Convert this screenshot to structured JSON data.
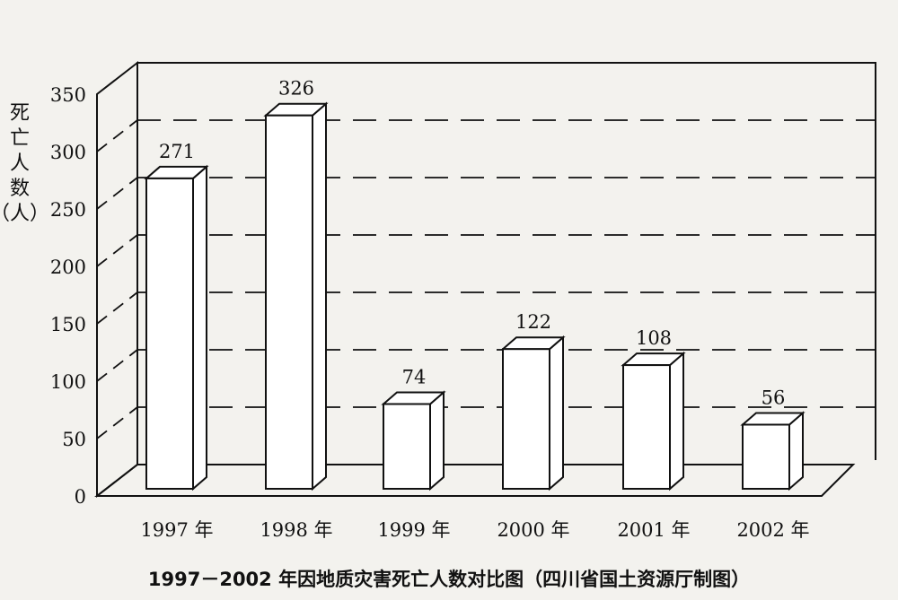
{
  "chart_data": {
    "type": "bar",
    "style": "3d",
    "title": "1997－2002 年因地质灾害死亡人数对比图（四川省国土资源厅制图）",
    "ylabel": "死亡人数（人）",
    "ylabel_chars": [
      "死",
      "亡",
      "人",
      "数",
      "（人）"
    ],
    "xlabel": "",
    "categories": [
      "1997 年",
      "1998 年",
      "1999 年",
      "2000 年",
      "2001 年",
      "2002 年"
    ],
    "values": [
      271,
      326,
      74,
      122,
      108,
      56
    ],
    "data_labels": [
      "271",
      "326",
      "74",
      "122",
      "108",
      "56"
    ],
    "ylim": [
      0,
      350
    ],
    "yticks": [
      0,
      50,
      100,
      150,
      200,
      250,
      300,
      350
    ],
    "grid": "dashed horizontal on back wall",
    "legend": "none",
    "colors": {
      "bar": "#ffffff",
      "line": "#111111",
      "background": "#f3f2ee"
    }
  }
}
